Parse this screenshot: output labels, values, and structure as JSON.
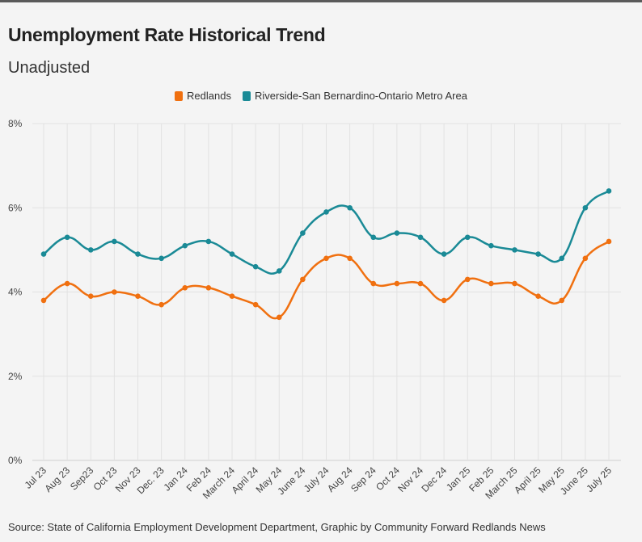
{
  "title": "Unemployment Rate Historical Trend",
  "subtitle": "Unadjusted",
  "source": "Source: State of California Employment Development Department, Graphic by Community Forward Redlands News",
  "colors": {
    "redlands": "#f07010",
    "metro": "#1a8a96",
    "grid": "#e2e2e2"
  },
  "chart_data": {
    "type": "line",
    "categories": [
      "Jul 23",
      "Aug 23",
      "Sep23",
      "Oct 23",
      "Nov 23",
      "Dec. 23",
      "Jan 24",
      "Feb 24",
      "March 24",
      "April 24",
      "May 24",
      "June 24",
      "July 24",
      "Aug 24",
      "Sep 24",
      "Oct 24",
      "Nov 24",
      "Dec 24",
      "Jan 25",
      "Feb 25",
      "March 25",
      "April 25",
      "May 25",
      "June 25",
      "July 25"
    ],
    "ylim": [
      0,
      8
    ],
    "yticks": [
      0,
      2,
      4,
      6,
      8
    ],
    "ytick_labels": [
      "0%",
      "2%",
      "4%",
      "6%",
      "8%"
    ],
    "legend_position": "top-center",
    "grid": true,
    "series": [
      {
        "name": "Redlands",
        "color": "#f07010",
        "values": [
          3.8,
          4.2,
          3.9,
          4.0,
          3.9,
          3.7,
          4.1,
          4.1,
          3.9,
          3.7,
          3.4,
          4.3,
          4.8,
          4.8,
          4.2,
          4.2,
          4.2,
          3.8,
          4.3,
          4.2,
          4.2,
          3.9,
          3.8,
          4.8,
          5.2
        ]
      },
      {
        "name": "Riverside-San Bernardino-Ontario Metro Area",
        "color": "#1a8a96",
        "values": [
          4.9,
          5.3,
          5.0,
          5.2,
          4.9,
          4.8,
          5.1,
          5.2,
          4.9,
          4.6,
          4.5,
          5.4,
          5.9,
          6.0,
          5.3,
          5.4,
          5.3,
          4.9,
          5.3,
          5.1,
          5.0,
          4.9,
          4.8,
          6.0,
          6.4
        ]
      }
    ]
  }
}
